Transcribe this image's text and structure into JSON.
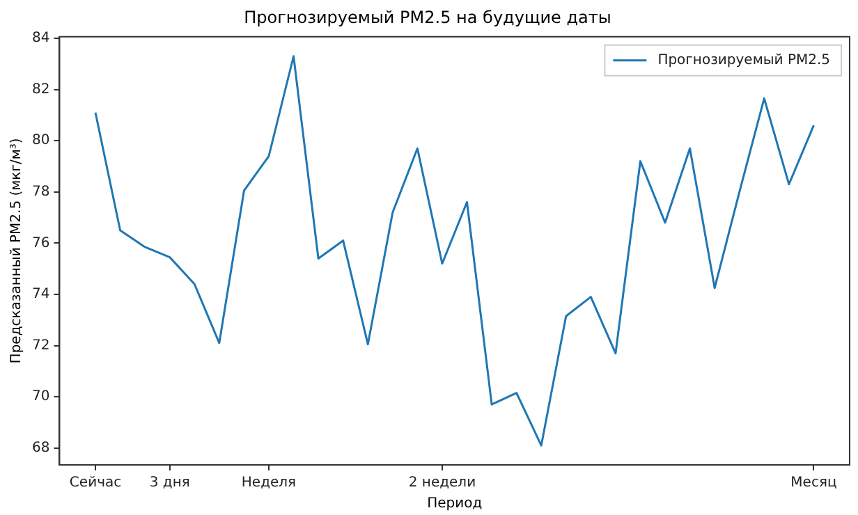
{
  "chart_data": {
    "type": "line",
    "title": "Прогнозируемый PM2.5 на будущие даты",
    "xlabel": "Период",
    "ylabel": "Предсказанный PM2.5 (мкг/м³)",
    "categories": [
      "Сейчас",
      null,
      null,
      "3 дня",
      null,
      null,
      null,
      "Неделя",
      null,
      null,
      null,
      null,
      null,
      null,
      "2 недели",
      null,
      null,
      null,
      null,
      null,
      null,
      null,
      null,
      null,
      null,
      null,
      null,
      null,
      null,
      "Месяц"
    ],
    "series": [
      {
        "name": "Прогнозируемый PM2.5",
        "color": "#1f77b4",
        "values": [
          81.1,
          76.5,
          75.85,
          75.45,
          74.4,
          72.1,
          78.05,
          79.4,
          83.3,
          75.4,
          76.1,
          72.05,
          77.2,
          79.7,
          75.2,
          77.6,
          69.7,
          70.15,
          68.1,
          73.15,
          73.9,
          71.7,
          79.2,
          76.8,
          79.7,
          74.25,
          78.0,
          81.65,
          78.3,
          80.6
        ]
      }
    ],
    "ylim": [
      67.34,
      84.06
    ],
    "yticks": [
      68,
      70,
      72,
      74,
      76,
      78,
      80,
      82,
      84
    ],
    "grid": false,
    "legend": "top right",
    "marker": "none",
    "line_style": "solid"
  }
}
